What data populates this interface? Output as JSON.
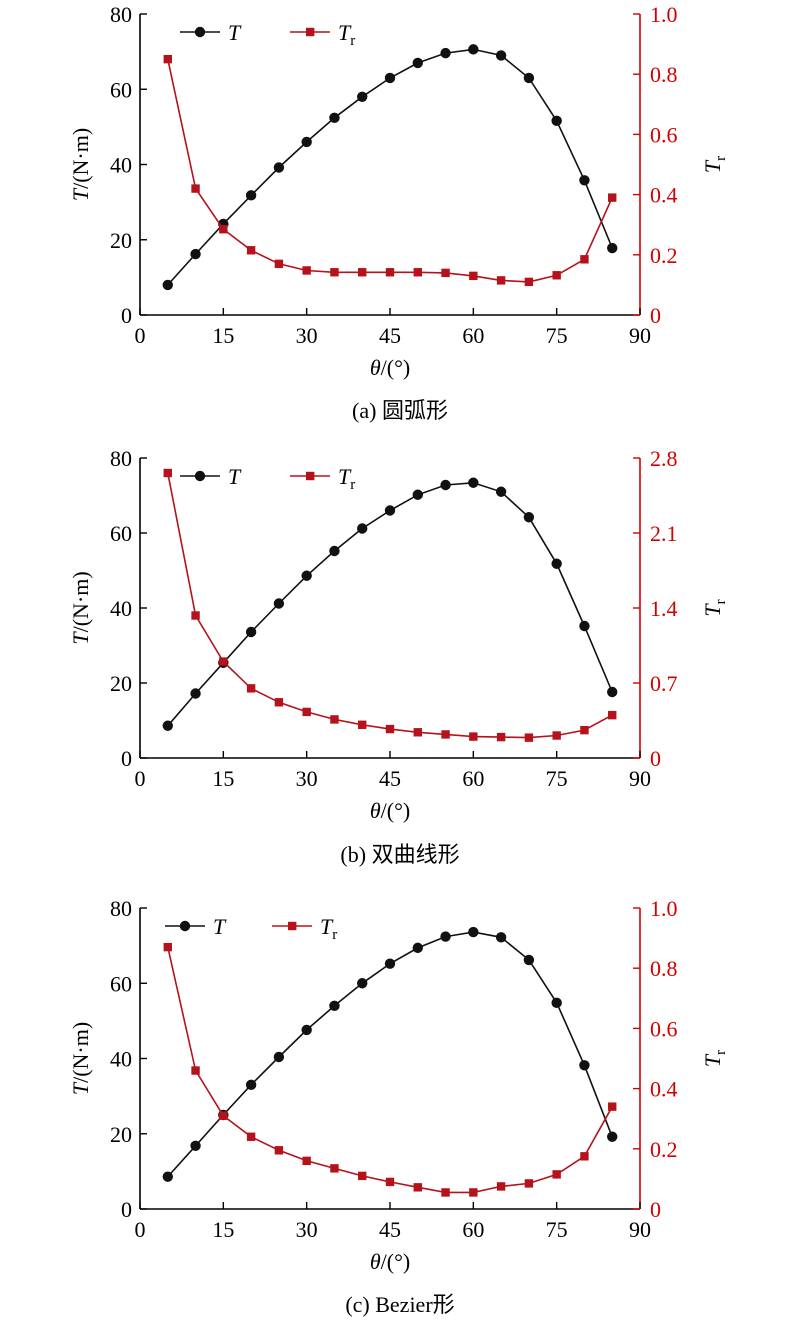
{
  "colors": {
    "axis_left": "#000000",
    "axis_right": "#d40000",
    "series_T": "#111111",
    "series_Tr": "#b5121b"
  },
  "chart_data": [
    {
      "type": "line",
      "caption": "(a) 圆弧形",
      "xlabel_symbol": "θ",
      "xlabel_unit": "/(°)",
      "ylabel_symbol": "T",
      "ylabel_unit": "/(N·m)",
      "y2label_symbol": "T",
      "y2label_sub": "r",
      "xlim": [
        0,
        90
      ],
      "xticks": [
        0,
        15,
        30,
        45,
        60,
        75,
        90
      ],
      "ylim": [
        0,
        80
      ],
      "yticks": [
        0,
        20,
        40,
        60,
        80
      ],
      "y2lim": [
        0,
        1.0
      ],
      "y2ticks": [
        "0",
        "0.2",
        "0.4",
        "0.6",
        "0.8",
        "1.0"
      ],
      "legend_position": "top-left",
      "x": [
        5,
        10,
        15,
        20,
        25,
        30,
        35,
        40,
        45,
        50,
        55,
        60,
        65,
        70,
        75,
        80,
        85
      ],
      "series": [
        {
          "name": "T",
          "axis": "left",
          "marker": "circle",
          "values": [
            8.0,
            16.2,
            24.2,
            31.8,
            39.2,
            46.0,
            52.4,
            58.0,
            63.0,
            67.0,
            69.6,
            70.6,
            69.0,
            63.0,
            51.6,
            35.8,
            17.8
          ]
        },
        {
          "name": "T",
          "sub": "r",
          "axis": "right",
          "marker": "square",
          "values": [
            0.85,
            0.42,
            0.285,
            0.215,
            0.17,
            0.148,
            0.142,
            0.142,
            0.142,
            0.142,
            0.14,
            0.13,
            0.115,
            0.11,
            0.132,
            0.185,
            0.39
          ]
        }
      ]
    },
    {
      "type": "line",
      "caption": "(b) 双曲线形",
      "xlabel_symbol": "θ",
      "xlabel_unit": "/(°)",
      "ylabel_symbol": "T",
      "ylabel_unit": "/(N·m)",
      "y2label_symbol": "T",
      "y2label_sub": "r",
      "xlim": [
        0,
        90
      ],
      "xticks": [
        0,
        15,
        30,
        45,
        60,
        75,
        90
      ],
      "ylim": [
        0,
        80
      ],
      "yticks": [
        0,
        20,
        40,
        60,
        80
      ],
      "y2lim": [
        0,
        2.8
      ],
      "y2ticks": [
        "0",
        "0.7",
        "1.4",
        "2.1",
        "2.8"
      ],
      "legend_position": "top-left",
      "x": [
        5,
        10,
        15,
        20,
        25,
        30,
        35,
        40,
        45,
        50,
        55,
        60,
        65,
        70,
        75,
        80,
        85
      ],
      "series": [
        {
          "name": "T",
          "axis": "left",
          "marker": "circle",
          "values": [
            8.6,
            17.2,
            25.4,
            33.6,
            41.2,
            48.6,
            55.2,
            61.2,
            66.0,
            70.2,
            72.8,
            73.4,
            71.0,
            64.2,
            51.8,
            35.2,
            17.6
          ]
        },
        {
          "name": "T",
          "sub": "r",
          "axis": "right",
          "marker": "square",
          "values": [
            2.66,
            1.33,
            0.9,
            0.65,
            0.52,
            0.43,
            0.36,
            0.31,
            0.27,
            0.24,
            0.22,
            0.2,
            0.195,
            0.19,
            0.21,
            0.26,
            0.4
          ]
        }
      ]
    },
    {
      "type": "line",
      "caption": "(c) Bezier形",
      "xlabel_symbol": "θ",
      "xlabel_unit": "/(°)",
      "ylabel_symbol": "T",
      "ylabel_unit": "/(N·m)",
      "y2label_symbol": "T",
      "y2label_sub": "r",
      "xlim": [
        0,
        90
      ],
      "xticks": [
        0,
        15,
        30,
        45,
        60,
        75,
        90
      ],
      "ylim": [
        0,
        80
      ],
      "yticks": [
        0,
        20,
        40,
        60,
        80
      ],
      "y2lim": [
        0,
        1.0
      ],
      "y2ticks": [
        "0",
        "0.2",
        "0.4",
        "0.6",
        "0.8",
        "1.0"
      ],
      "legend_position": "top-left",
      "x": [
        5,
        10,
        15,
        20,
        25,
        30,
        35,
        40,
        45,
        50,
        55,
        60,
        65,
        70,
        75,
        80,
        85
      ],
      "series": [
        {
          "name": "T",
          "axis": "left",
          "marker": "circle",
          "values": [
            8.6,
            16.8,
            25.0,
            33.0,
            40.4,
            47.6,
            54.0,
            60.0,
            65.2,
            69.4,
            72.4,
            73.6,
            72.2,
            66.2,
            54.8,
            38.2,
            19.2
          ]
        },
        {
          "name": "T",
          "sub": "r",
          "axis": "right",
          "marker": "square",
          "values": [
            0.87,
            0.46,
            0.31,
            0.24,
            0.195,
            0.16,
            0.135,
            0.11,
            0.09,
            0.072,
            0.055,
            0.055,
            0.075,
            0.085,
            0.115,
            0.175,
            0.34
          ]
        }
      ]
    }
  ]
}
